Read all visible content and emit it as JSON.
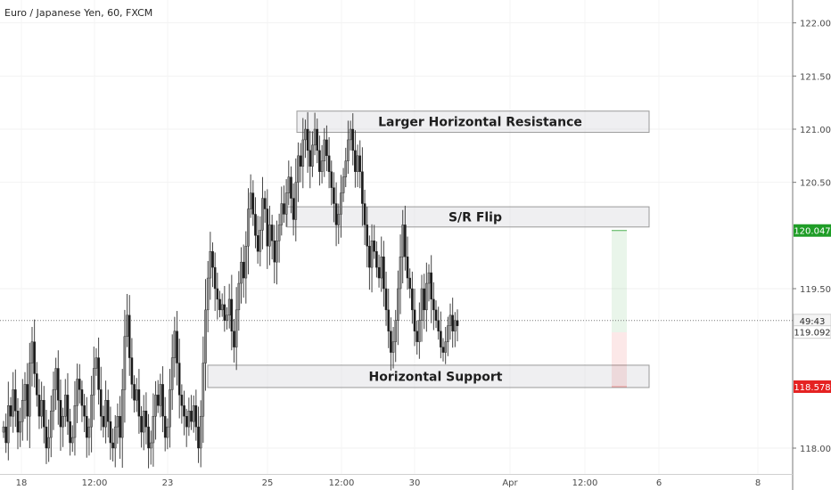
{
  "chart_data": {
    "type": "candlestick",
    "title": "Euro / Japanese Yen, 60, FXCM",
    "symbol": "Euro / Japanese Yen",
    "interval": "60",
    "source": "FXCM",
    "ylim": [
      117.75,
      122.15
    ],
    "x_ticks": [
      "18",
      "12:00",
      "23",
      "25",
      "12:00",
      "30",
      "Apr",
      "12:00",
      "6",
      "8"
    ],
    "y_ticks": [
      "122.000",
      "121.500",
      "121.000",
      "120.500",
      "119.500",
      "118.000"
    ],
    "price_tags": [
      {
        "label": "120.047",
        "value": 120.047,
        "color": "#1f9d27"
      },
      {
        "label": "49:43",
        "value": 119.2,
        "color": "#f4f4f4"
      },
      {
        "label": "119.092",
        "value": 119.092,
        "color": "#ffffff"
      },
      {
        "label": "118.578",
        "value": 118.578,
        "color": "#e52222"
      }
    ],
    "zones": [
      {
        "label": "Larger Horizontal Resistance",
        "low": 120.97,
        "high": 121.17
      },
      {
        "label": "S/R Flip",
        "low": 120.08,
        "high": 120.27
      },
      {
        "label": "Horizontal Support",
        "low": 118.57,
        "high": 118.78
      }
    ],
    "position": {
      "entry": 119.09,
      "target": 120.047,
      "stop": 118.578
    },
    "series": [
      {
        "values": [
          118.2,
          118.05,
          118.4,
          118.3,
          118.55,
          118.35,
          118.15,
          118.25,
          118.45,
          118.6,
          118.3,
          118.8,
          119.0,
          118.7,
          118.5,
          118.3,
          118.45,
          118.2,
          118.0,
          118.1,
          118.35,
          118.55,
          118.75,
          118.45,
          118.2,
          118.3,
          118.5,
          118.25,
          118.05,
          118.1,
          118.4,
          118.65,
          118.55,
          118.4,
          118.3,
          118.1,
          118.2,
          118.5,
          118.75,
          118.85,
          118.55,
          118.3,
          118.2,
          118.45,
          118.25,
          118.05,
          118.0,
          118.2,
          118.3,
          118.1,
          118.55,
          119.05,
          119.25,
          118.85,
          118.6,
          118.45,
          118.55,
          118.3,
          118.15,
          118.35,
          118.2,
          118.0,
          118.05,
          118.3,
          118.5,
          118.4,
          118.6,
          118.3,
          118.1,
          118.2,
          118.55,
          118.85,
          119.1,
          118.8,
          118.5,
          118.4,
          118.3,
          118.2,
          118.35,
          118.25,
          118.4,
          118.2,
          118.0,
          118.3,
          118.8,
          119.3,
          119.6,
          119.85,
          119.7,
          119.5,
          119.4,
          119.3,
          119.35,
          119.2,
          119.25,
          119.4,
          119.1,
          118.95,
          119.3,
          119.55,
          119.75,
          119.6,
          119.9,
          120.25,
          120.4,
          120.2,
          120.0,
          119.85,
          120.05,
          120.35,
          120.25,
          119.9,
          120.1,
          119.95,
          119.75,
          119.95,
          120.1,
          120.3,
          120.2,
          120.4,
          120.55,
          120.35,
          120.15,
          120.5,
          120.75,
          120.65,
          120.9,
          121.0,
          120.8,
          120.65,
          120.85,
          121.0,
          120.8,
          120.6,
          120.7,
          120.9,
          120.75,
          120.6,
          120.45,
          120.3,
          120.1,
          120.2,
          120.4,
          120.55,
          120.7,
          120.9,
          121.0,
          120.8,
          120.6,
          120.75,
          120.6,
          120.3,
          120.1,
          119.9,
          119.7,
          119.95,
          119.85,
          119.7,
          119.6,
          119.8,
          119.5,
          119.3,
          119.1,
          118.9,
          119.0,
          119.2,
          119.5,
          119.8,
          120.1,
          119.8,
          119.6,
          119.5,
          119.3,
          119.1,
          119.0,
          119.2,
          119.5,
          119.3,
          119.55,
          119.65,
          119.4,
          119.3,
          119.2,
          119.1,
          118.95,
          118.9,
          119.0,
          119.15,
          119.25,
          119.1,
          119.2,
          119.15
        ]
      }
    ]
  }
}
